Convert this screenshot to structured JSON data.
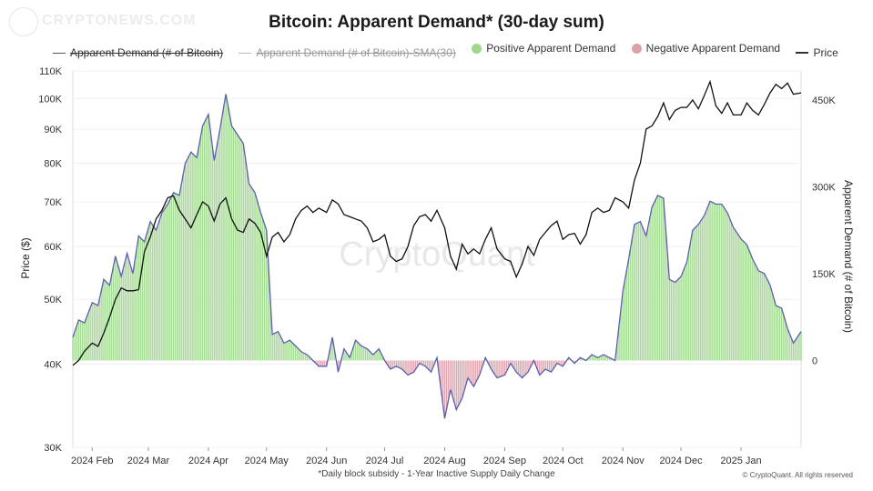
{
  "watermark_logo": "CRYPTONEWS.COM",
  "chart_data": {
    "type": "area",
    "title": "Bitcoin: Apparent Demand* (30-day sum)",
    "legend": [
      {
        "label": "Apparent Demand (# of Bitcoin)",
        "marker": "line",
        "struck": true
      },
      {
        "label": "Apparent Demand (# of Bitcoin)-SMA(30)",
        "marker": "line",
        "struck": true
      },
      {
        "label": "Positive Apparent Demand",
        "marker": "dot",
        "color": "#9fd78f"
      },
      {
        "label": "Negative Apparent Demand",
        "marker": "dot",
        "color": "#d9a3ab"
      },
      {
        "label": "Price",
        "marker": "line"
      }
    ],
    "xlabel": "",
    "x_ticks": [
      "2024 Feb",
      "2024 Mar",
      "2024 Apr",
      "2024 May",
      "2024 Jun",
      "2024 Jul",
      "2024 Aug",
      "2024 Sep",
      "2024 Oct",
      "2024 Nov",
      "2024 Dec",
      "2025 Jan"
    ],
    "x_range": [
      "2024-01-22",
      "2025-02-01"
    ],
    "y_left": {
      "label": "Price ($)",
      "scale": "log",
      "range": [
        30000,
        110000
      ],
      "ticks": [
        "30K",
        "40K",
        "50K",
        "60K",
        "70K",
        "80K",
        "90K",
        "100K",
        "110K"
      ]
    },
    "y_right": {
      "label": "Apparent Demand (# of Bitcoin)",
      "range": [
        -150000,
        500000
      ],
      "ticks": [
        "0",
        "150K",
        "300K",
        "450K"
      ]
    },
    "series": [
      {
        "name": "Apparent Demand (# of Bitcoin)",
        "axis": "right",
        "dates": [
          "2024-01-22",
          "2024-01-25",
          "2024-01-28",
          "2024-02-01",
          "2024-02-04",
          "2024-02-07",
          "2024-02-10",
          "2024-02-13",
          "2024-02-16",
          "2024-02-19",
          "2024-02-22",
          "2024-02-25",
          "2024-02-28",
          "2024-03-02",
          "2024-03-05",
          "2024-03-08",
          "2024-03-11",
          "2024-03-14",
          "2024-03-17",
          "2024-03-20",
          "2024-03-23",
          "2024-03-26",
          "2024-03-29",
          "2024-04-01",
          "2024-04-04",
          "2024-04-07",
          "2024-04-10",
          "2024-04-13",
          "2024-04-16",
          "2024-04-19",
          "2024-04-22",
          "2024-04-25",
          "2024-04-28",
          "2024-05-01",
          "2024-05-04",
          "2024-05-07",
          "2024-05-10",
          "2024-05-13",
          "2024-05-16",
          "2024-05-19",
          "2024-05-22",
          "2024-05-25",
          "2024-05-28",
          "2024-06-01",
          "2024-06-04",
          "2024-06-07",
          "2024-06-10",
          "2024-06-13",
          "2024-06-16",
          "2024-06-19",
          "2024-06-22",
          "2024-06-25",
          "2024-06-28",
          "2024-07-01",
          "2024-07-04",
          "2024-07-07",
          "2024-07-10",
          "2024-07-13",
          "2024-07-16",
          "2024-07-19",
          "2024-07-22",
          "2024-07-25",
          "2024-07-28",
          "2024-08-01",
          "2024-08-04",
          "2024-08-07",
          "2024-08-10",
          "2024-08-13",
          "2024-08-16",
          "2024-08-19",
          "2024-08-22",
          "2024-08-25",
          "2024-08-28",
          "2024-09-01",
          "2024-09-04",
          "2024-09-07",
          "2024-09-10",
          "2024-09-13",
          "2024-09-16",
          "2024-09-19",
          "2024-09-22",
          "2024-09-25",
          "2024-09-28",
          "2024-10-01",
          "2024-10-04",
          "2024-10-07",
          "2024-10-10",
          "2024-10-13",
          "2024-10-16",
          "2024-10-19",
          "2024-10-22",
          "2024-10-25",
          "2024-10-28",
          "2024-11-01",
          "2024-11-04",
          "2024-11-07",
          "2024-11-10",
          "2024-11-13",
          "2024-11-16",
          "2024-11-19",
          "2024-11-22",
          "2024-11-25",
          "2024-11-28",
          "2024-12-01",
          "2024-12-04",
          "2024-12-07",
          "2024-12-10",
          "2024-12-13",
          "2024-12-16",
          "2024-12-19",
          "2024-12-22",
          "2024-12-25",
          "2024-12-28",
          "2025-01-01",
          "2025-01-04",
          "2025-01-07",
          "2025-01-10",
          "2025-01-13",
          "2025-01-16",
          "2025-01-19",
          "2025-01-22",
          "2025-01-25",
          "2025-01-28",
          "2025-02-01"
        ],
        "values": [
          40000,
          70000,
          65000,
          100000,
          95000,
          140000,
          130000,
          180000,
          145000,
          185000,
          150000,
          215000,
          205000,
          240000,
          225000,
          255000,
          270000,
          290000,
          285000,
          340000,
          360000,
          350000,
          405000,
          425000,
          345000,
          400000,
          460000,
          405000,
          390000,
          375000,
          305000,
          290000,
          255000,
          225000,
          45000,
          50000,
          30000,
          35000,
          25000,
          15000,
          10000,
          0,
          -10000,
          -10000,
          40000,
          -20000,
          20000,
          5000,
          35000,
          25000,
          20000,
          10000,
          20000,
          0,
          -15000,
          -10000,
          -15000,
          -25000,
          -20000,
          -5000,
          -10000,
          -20000,
          5000,
          -100000,
          -50000,
          -85000,
          -65000,
          -30000,
          -45000,
          -25000,
          5000,
          -15000,
          -30000,
          -25000,
          -5000,
          -20000,
          -30000,
          -20000,
          0,
          -25000,
          -15000,
          -20000,
          -5000,
          -10000,
          5000,
          -5000,
          5000,
          0,
          10000,
          5000,
          10000,
          5000,
          0,
          120000,
          175000,
          235000,
          240000,
          215000,
          265000,
          285000,
          280000,
          140000,
          135000,
          145000,
          170000,
          225000,
          235000,
          250000,
          275000,
          270000,
          270000,
          255000,
          230000,
          210000,
          200000,
          175000,
          155000,
          150000,
          130000,
          95000,
          90000,
          55000,
          30000,
          50000
        ],
        "style": "line"
      },
      {
        "name": "Price",
        "axis": "left",
        "dates": [
          "2024-01-22",
          "2024-01-25",
          "2024-01-28",
          "2024-02-01",
          "2024-02-04",
          "2024-02-07",
          "2024-02-10",
          "2024-02-13",
          "2024-02-16",
          "2024-02-19",
          "2024-02-22",
          "2024-02-25",
          "2024-02-28",
          "2024-03-02",
          "2024-03-05",
          "2024-03-08",
          "2024-03-11",
          "2024-03-14",
          "2024-03-17",
          "2024-03-20",
          "2024-03-23",
          "2024-03-26",
          "2024-03-29",
          "2024-04-01",
          "2024-04-04",
          "2024-04-07",
          "2024-04-10",
          "2024-04-13",
          "2024-04-16",
          "2024-04-19",
          "2024-04-22",
          "2024-04-25",
          "2024-04-28",
          "2024-05-01",
          "2024-05-04",
          "2024-05-07",
          "2024-05-10",
          "2024-05-13",
          "2024-05-16",
          "2024-05-19",
          "2024-05-22",
          "2024-05-25",
          "2024-05-28",
          "2024-06-01",
          "2024-06-04",
          "2024-06-07",
          "2024-06-10",
          "2024-06-13",
          "2024-06-16",
          "2024-06-19",
          "2024-06-22",
          "2024-06-25",
          "2024-06-28",
          "2024-07-01",
          "2024-07-04",
          "2024-07-07",
          "2024-07-10",
          "2024-07-13",
          "2024-07-16",
          "2024-07-19",
          "2024-07-22",
          "2024-07-25",
          "2024-07-28",
          "2024-08-01",
          "2024-08-04",
          "2024-08-07",
          "2024-08-10",
          "2024-08-13",
          "2024-08-16",
          "2024-08-19",
          "2024-08-22",
          "2024-08-25",
          "2024-08-28",
          "2024-09-01",
          "2024-09-04",
          "2024-09-07",
          "2024-09-10",
          "2024-09-13",
          "2024-09-16",
          "2024-09-19",
          "2024-09-22",
          "2024-09-25",
          "2024-09-28",
          "2024-10-01",
          "2024-10-04",
          "2024-10-07",
          "2024-10-10",
          "2024-10-13",
          "2024-10-16",
          "2024-10-19",
          "2024-10-22",
          "2024-10-25",
          "2024-10-28",
          "2024-11-01",
          "2024-11-04",
          "2024-11-07",
          "2024-11-10",
          "2024-11-13",
          "2024-11-16",
          "2024-11-19",
          "2024-11-22",
          "2024-11-25",
          "2024-11-28",
          "2024-12-01",
          "2024-12-04",
          "2024-12-07",
          "2024-12-10",
          "2024-12-13",
          "2024-12-16",
          "2024-12-19",
          "2024-12-22",
          "2024-12-25",
          "2024-12-28",
          "2025-01-01",
          "2025-01-04",
          "2025-01-07",
          "2025-01-10",
          "2025-01-13",
          "2025-01-16",
          "2025-01-19",
          "2025-01-22",
          "2025-01-25",
          "2025-01-28",
          "2025-02-01"
        ],
        "values": [
          39800,
          40500,
          41800,
          43000,
          42500,
          44500,
          47000,
          50000,
          52000,
          51500,
          51500,
          51700,
          59000,
          62000,
          66000,
          68000,
          71000,
          71500,
          68000,
          66000,
          64000,
          67000,
          70000,
          69000,
          65500,
          69500,
          71000,
          66000,
          63500,
          63000,
          66000,
          65000,
          63000,
          58000,
          62000,
          63000,
          61000,
          62500,
          66000,
          68000,
          69000,
          67500,
          68500,
          67500,
          70500,
          69500,
          67000,
          66500,
          66000,
          65500,
          64000,
          61000,
          61500,
          62500,
          58000,
          57000,
          57500,
          60000,
          64500,
          66500,
          67000,
          65500,
          68000,
          64000,
          58000,
          55500,
          60500,
          58500,
          59500,
          58500,
          61500,
          64000,
          59500,
          57500,
          57000,
          54000,
          56500,
          60000,
          58200,
          61500,
          63000,
          64500,
          65500,
          61500,
          62500,
          62800,
          60500,
          62500,
          67500,
          68500,
          67500,
          68000,
          71000,
          70000,
          68500,
          75500,
          80000,
          90000,
          91000,
          94000,
          98500,
          93000,
          96000,
          97000,
          97000,
          99500,
          96500,
          101000,
          106000,
          97500,
          95000,
          98500,
          94500,
          94500,
          98500,
          96000,
          94500,
          98000,
          102000,
          105000,
          103500,
          105500,
          101500,
          102000
        ]
      }
    ],
    "annotations": [
      "CryptoQuant"
    ]
  },
  "footnote": "*Daily block subsidy - 1-Year Inactive Supply Daily Change",
  "copyright": "© CryptoQuant. All rights reserved"
}
